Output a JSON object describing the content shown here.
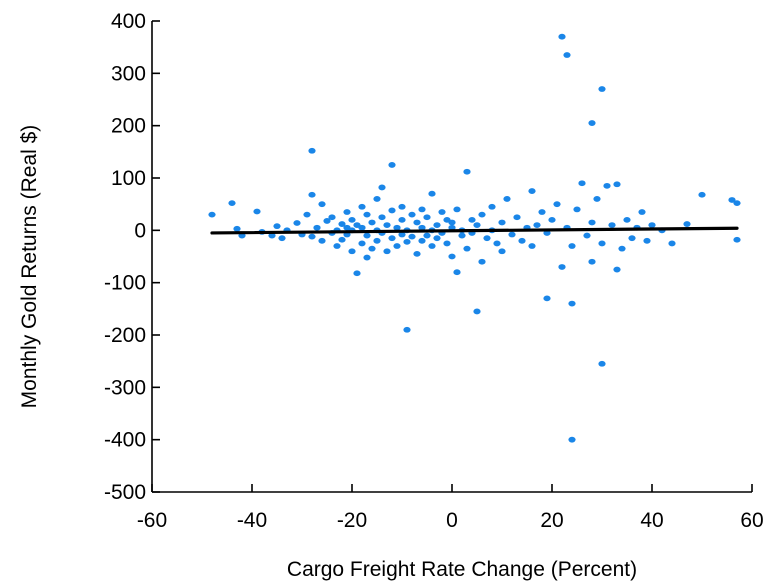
{
  "chart_data": {
    "type": "scatter",
    "title": "",
    "xlabel": "Cargo Freight Rate Change (Percent)",
    "ylabel": "Monthly Gold Returns (Real $)",
    "xlim": [
      -60,
      60
    ],
    "ylim": [
      -500,
      400
    ],
    "xticks": [
      -60,
      -40,
      -20,
      0,
      20,
      40,
      60
    ],
    "yticks": [
      -500,
      -400,
      -300,
      -200,
      -100,
      0,
      100,
      200,
      300,
      400
    ],
    "xtick_labels": [
      "-60",
      "-40",
      "-20",
      "0",
      "20",
      "40",
      "60"
    ],
    "ytick_labels": [
      "-500",
      "-400",
      "-300",
      "-200",
      "-100",
      "0",
      "100",
      "200",
      "300",
      "400"
    ],
    "grid": false,
    "legend": "none",
    "point_color": "#1a86e8",
    "fit_line_color": "#000000",
    "fit_line": {
      "x": [
        -48,
        57
      ],
      "y": [
        -5,
        4
      ]
    },
    "series": [
      {
        "values": [
          [
            -48,
            30
          ],
          [
            -44,
            52
          ],
          [
            -43,
            3
          ],
          [
            -42,
            -10
          ],
          [
            -39,
            36
          ],
          [
            -38,
            -3
          ],
          [
            -36,
            -10
          ],
          [
            -35,
            8
          ],
          [
            -34,
            -15
          ],
          [
            -33,
            0
          ],
          [
            -31,
            14
          ],
          [
            -30,
            -8
          ],
          [
            -29,
            30
          ],
          [
            -28,
            152
          ],
          [
            -28,
            68
          ],
          [
            -28,
            -12
          ],
          [
            -27,
            5
          ],
          [
            -26,
            50
          ],
          [
            -26,
            -20
          ],
          [
            -25,
            18
          ],
          [
            -24,
            -5
          ],
          [
            -24,
            25
          ],
          [
            -23,
            0
          ],
          [
            -23,
            -30
          ],
          [
            -22,
            12
          ],
          [
            -22,
            -18
          ],
          [
            -21,
            35
          ],
          [
            -21,
            5
          ],
          [
            -21,
            -8
          ],
          [
            -20,
            -40
          ],
          [
            -20,
            20
          ],
          [
            -20,
            0
          ],
          [
            -19,
            -82
          ],
          [
            -19,
            10
          ],
          [
            -18,
            -25
          ],
          [
            -18,
            45
          ],
          [
            -18,
            5
          ],
          [
            -17,
            -52
          ],
          [
            -17,
            30
          ],
          [
            -17,
            -10
          ],
          [
            -16,
            15
          ],
          [
            -16,
            -35
          ],
          [
            -15,
            60
          ],
          [
            -15,
            0
          ],
          [
            -15,
            -20
          ],
          [
            -14,
            82
          ],
          [
            -14,
            25
          ],
          [
            -14,
            -5
          ],
          [
            -13,
            -40
          ],
          [
            -13,
            10
          ],
          [
            -12,
            125
          ],
          [
            -12,
            38
          ],
          [
            -12,
            -15
          ],
          [
            -11,
            -30
          ],
          [
            -11,
            5
          ],
          [
            -10,
            45
          ],
          [
            -10,
            -8
          ],
          [
            -10,
            20
          ],
          [
            -9,
            -190
          ],
          [
            -9,
            -22
          ],
          [
            -9,
            0
          ],
          [
            -8,
            30
          ],
          [
            -8,
            -12
          ],
          [
            -7,
            15
          ],
          [
            -7,
            -45
          ],
          [
            -6,
            5
          ],
          [
            -6,
            40
          ],
          [
            -6,
            -20
          ],
          [
            -5,
            -10
          ],
          [
            -5,
            25
          ],
          [
            -4,
            70
          ],
          [
            -4,
            -30
          ],
          [
            -4,
            0
          ],
          [
            -3,
            10
          ],
          [
            -3,
            -15
          ],
          [
            -2,
            35
          ],
          [
            -2,
            -5
          ],
          [
            -1,
            20
          ],
          [
            -1,
            -25
          ],
          [
            0,
            5
          ],
          [
            0,
            -50
          ],
          [
            0,
            15
          ],
          [
            1,
            -80
          ],
          [
            1,
            40
          ],
          [
            2,
            -10
          ],
          [
            2,
            0
          ],
          [
            3,
            112
          ],
          [
            3,
            -35
          ],
          [
            4,
            20
          ],
          [
            4,
            -5
          ],
          [
            5,
            -155
          ],
          [
            5,
            10
          ],
          [
            6,
            -60
          ],
          [
            6,
            30
          ],
          [
            7,
            -15
          ],
          [
            8,
            45
          ],
          [
            8,
            0
          ],
          [
            9,
            -25
          ],
          [
            10,
            15
          ],
          [
            10,
            -40
          ],
          [
            11,
            60
          ],
          [
            12,
            -8
          ],
          [
            13,
            25
          ],
          [
            14,
            -20
          ],
          [
            15,
            5
          ],
          [
            16,
            75
          ],
          [
            16,
            -30
          ],
          [
            17,
            10
          ],
          [
            18,
            35
          ],
          [
            19,
            -130
          ],
          [
            19,
            -5
          ],
          [
            20,
            20
          ],
          [
            21,
            50
          ],
          [
            22,
            -70
          ],
          [
            22,
            370
          ],
          [
            23,
            335
          ],
          [
            23,
            5
          ],
          [
            24,
            -140
          ],
          [
            24,
            -400
          ],
          [
            24,
            -30
          ],
          [
            25,
            40
          ],
          [
            26,
            90
          ],
          [
            27,
            -10
          ],
          [
            28,
            205
          ],
          [
            28,
            -60
          ],
          [
            28,
            15
          ],
          [
            29,
            60
          ],
          [
            30,
            270
          ],
          [
            30,
            -25
          ],
          [
            30,
            -255
          ],
          [
            31,
            85
          ],
          [
            32,
            10
          ],
          [
            33,
            -75
          ],
          [
            33,
            88
          ],
          [
            34,
            -35
          ],
          [
            35,
            20
          ],
          [
            36,
            -15
          ],
          [
            37,
            5
          ],
          [
            38,
            35
          ],
          [
            39,
            -20
          ],
          [
            40,
            10
          ],
          [
            42,
            0
          ],
          [
            44,
            -25
          ],
          [
            47,
            12
          ],
          [
            50,
            68
          ],
          [
            56,
            58
          ],
          [
            57,
            52
          ],
          [
            57,
            -18
          ]
        ]
      }
    ]
  }
}
